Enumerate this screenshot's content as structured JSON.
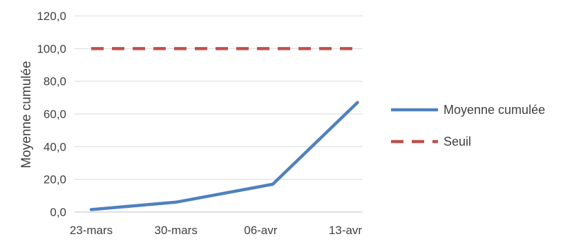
{
  "chart_data": {
    "type": "line",
    "ylabel": "Moyenne cumulée",
    "xlabel": "",
    "ylim": [
      0,
      120
    ],
    "yticks": [
      "0,0",
      "20,0",
      "40,0",
      "60,0",
      "80,0",
      "100,0",
      "120,0"
    ],
    "ytick_values": [
      0,
      20,
      40,
      60,
      80,
      100,
      120
    ],
    "xtick_labels": [
      "23-mars",
      "30-mars",
      "06-avr",
      "13-avr"
    ],
    "xtick_days": [
      0,
      7,
      14,
      21
    ],
    "grid": "horizontal",
    "legend_position": "right",
    "series": [
      {
        "name": "Moyenne cumulée",
        "color": "#4f81bd",
        "style": "solid",
        "points": [
          {
            "day": 0,
            "y": 1.5
          },
          {
            "day": 7,
            "y": 6.0
          },
          {
            "day": 15,
            "y": 17.0
          },
          {
            "day": 22,
            "y": 67.0
          }
        ]
      },
      {
        "name": "Seuil",
        "color": "#c0504d",
        "style": "dashed",
        "points": [
          {
            "day": 0,
            "y": 100
          },
          {
            "day": 22,
            "y": 100
          }
        ]
      }
    ]
  }
}
